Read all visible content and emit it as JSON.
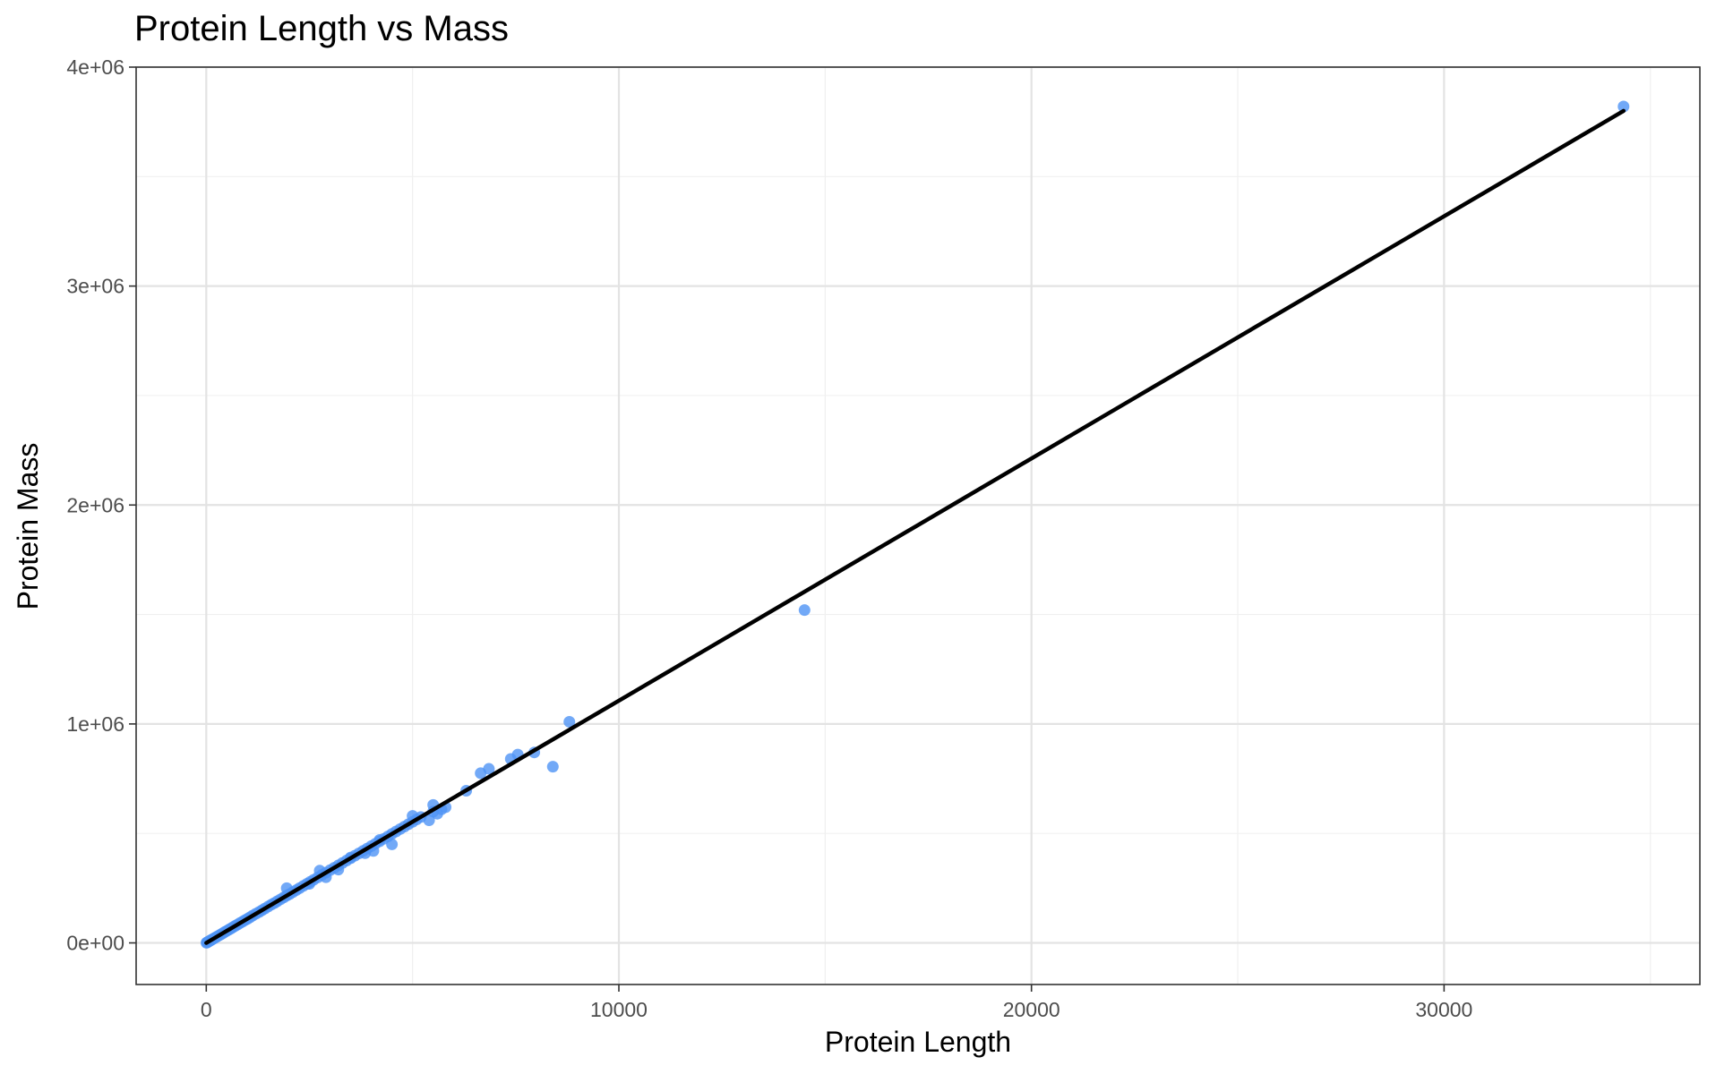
{
  "chart_data": {
    "type": "scatter",
    "title": "Protein Length vs Mass",
    "xlabel": "Protein Length",
    "ylabel": "Protein Mass",
    "xlim": [
      -1700,
      36200
    ],
    "ylim": [
      -190000,
      4000000
    ],
    "x_ticks": [
      {
        "value": 0,
        "label": "0"
      },
      {
        "value": 10000,
        "label": "10000"
      },
      {
        "value": 20000,
        "label": "20000"
      },
      {
        "value": 30000,
        "label": "30000"
      }
    ],
    "x_minor": [
      5000,
      15000,
      25000,
      35000
    ],
    "y_ticks": [
      {
        "value": 0,
        "label": "0e+00"
      },
      {
        "value": 1000000,
        "label": "1e+06"
      },
      {
        "value": 2000000,
        "label": "2e+06"
      },
      {
        "value": 3000000,
        "label": "3e+06"
      },
      {
        "value": 4000000,
        "label": "4e+06"
      }
    ],
    "y_minor": [
      500000,
      1500000,
      2500000,
      3500000
    ],
    "grid": true,
    "legend": "none",
    "point_color": "#4f94f5",
    "line_color": "#000000",
    "fit_line": {
      "x": [
        0,
        34350
      ],
      "y": [
        0,
        3800000
      ]
    },
    "points": {
      "x": [
        5,
        20,
        40,
        60,
        80,
        100,
        130,
        160,
        200,
        250,
        300,
        350,
        400,
        450,
        500,
        550,
        600,
        650,
        700,
        760,
        820,
        880,
        940,
        1000,
        1060,
        1120,
        1200,
        1280,
        1350,
        1420,
        1500,
        1580,
        1650,
        1720,
        1800,
        1880,
        1950,
        2020,
        2100,
        2180,
        2260,
        2350,
        2440,
        2520,
        2600,
        2700,
        2800,
        2900,
        3000,
        3100,
        3200,
        3300,
        3400,
        3500,
        3600,
        3700,
        3800,
        3900,
        4000,
        4100,
        4200,
        4300,
        4400,
        4500,
        4600,
        4700,
        4800,
        4900,
        5000,
        5100,
        5200,
        5400,
        5500,
        5600,
        5700,
        5800,
        6300,
        6650,
        6850,
        7380,
        7550,
        7950,
        8400,
        8800,
        14500,
        34350,
        1950,
        2750,
        3200,
        3850,
        4050,
        4500,
        5000,
        2900,
        3500,
        4200,
        2500,
        5500
      ],
      "y": [
        500,
        2200,
        4500,
        6700,
        9000,
        11000,
        14400,
        17700,
        22000,
        27600,
        33000,
        38500,
        44000,
        50000,
        55000,
        61000,
        66000,
        72000,
        77500,
        84000,
        91000,
        97000,
        104000,
        110000,
        117000,
        124000,
        133000,
        141000,
        149000,
        157000,
        166000,
        175000,
        182000,
        190000,
        199000,
        208000,
        216000,
        223000,
        232000,
        241000,
        250000,
        260000,
        270000,
        279000,
        288000,
        299000,
        310000,
        321000,
        332000,
        343000,
        354000,
        365000,
        376000,
        387000,
        398000,
        409000,
        420000,
        431000,
        442000,
        453000,
        464000,
        475000,
        486000,
        498000,
        509000,
        520000,
        531000,
        542000,
        553000,
        564000,
        575000,
        560000,
        630000,
        590000,
        610000,
        620000,
        695000,
        775000,
        795000,
        840000,
        860000,
        870000,
        805000,
        1010000,
        1520000,
        3820000,
        250000,
        330000,
        335000,
        410000,
        420000,
        450000,
        580000,
        300000,
        390000,
        470000,
        270000,
        600000
      ]
    }
  }
}
